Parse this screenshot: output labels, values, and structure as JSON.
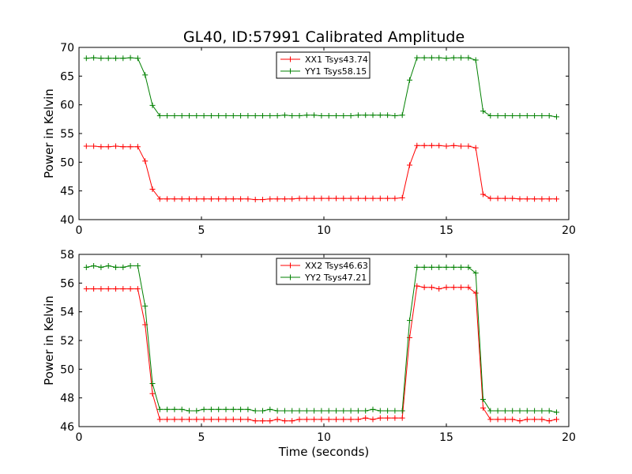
{
  "title": "GL40, ID:57991 Calibrated Amplitude",
  "chart_data": [
    {
      "type": "line",
      "ylabel": "Power in Kelvin",
      "xlabel": "",
      "xlim": [
        0,
        20
      ],
      "ylim": [
        40,
        70
      ],
      "xticks": [
        0,
        5,
        10,
        15,
        20
      ],
      "yticks": [
        40,
        45,
        50,
        55,
        60,
        65,
        70
      ],
      "grid": false,
      "legend_position": "top-center",
      "x": [
        0.3,
        0.6,
        0.9,
        1.2,
        1.5,
        1.8,
        2.1,
        2.4,
        2.7,
        3.0,
        3.3,
        3.6,
        3.9,
        4.2,
        4.5,
        4.8,
        5.1,
        5.4,
        5.7,
        6.0,
        6.3,
        6.6,
        6.9,
        7.2,
        7.5,
        7.8,
        8.1,
        8.4,
        8.7,
        9.0,
        9.3,
        9.6,
        9.9,
        10.2,
        10.5,
        10.8,
        11.1,
        11.4,
        11.7,
        12.0,
        12.3,
        12.6,
        12.9,
        13.2,
        13.5,
        13.8,
        14.1,
        14.4,
        14.7,
        15.0,
        15.3,
        15.6,
        15.9,
        16.2,
        16.5,
        16.8,
        17.1,
        17.4,
        17.7,
        18.0,
        18.3,
        18.6,
        18.9,
        19.2,
        19.5
      ],
      "series": [
        {
          "name": "XX1 Tsys43.74",
          "color": "#ff0000",
          "values": [
            52.8,
            52.8,
            52.7,
            52.7,
            52.8,
            52.7,
            52.7,
            52.7,
            50.2,
            45.3,
            43.6,
            43.6,
            43.6,
            43.6,
            43.6,
            43.6,
            43.6,
            43.6,
            43.6,
            43.6,
            43.6,
            43.6,
            43.6,
            43.5,
            43.5,
            43.6,
            43.6,
            43.6,
            43.6,
            43.7,
            43.7,
            43.7,
            43.7,
            43.7,
            43.7,
            43.7,
            43.7,
            43.7,
            43.7,
            43.7,
            43.7,
            43.7,
            43.7,
            43.8,
            49.5,
            52.9,
            52.9,
            52.9,
            52.9,
            52.8,
            52.9,
            52.8,
            52.8,
            52.5,
            44.4,
            43.7,
            43.7,
            43.7,
            43.7,
            43.6,
            43.6,
            43.6,
            43.6,
            43.6,
            43.6
          ]
        },
        {
          "name": "YY1 Tsys58.15",
          "color": "#008000",
          "values": [
            68.1,
            68.2,
            68.1,
            68.1,
            68.1,
            68.1,
            68.2,
            68.1,
            65.2,
            59.9,
            58.1,
            58.1,
            58.1,
            58.1,
            58.1,
            58.1,
            58.1,
            58.1,
            58.1,
            58.1,
            58.1,
            58.1,
            58.1,
            58.1,
            58.1,
            58.1,
            58.1,
            58.2,
            58.1,
            58.1,
            58.2,
            58.2,
            58.1,
            58.1,
            58.1,
            58.1,
            58.1,
            58.2,
            58.2,
            58.2,
            58.2,
            58.2,
            58.1,
            58.2,
            64.3,
            68.2,
            68.2,
            68.2,
            68.2,
            68.1,
            68.2,
            68.2,
            68.2,
            67.8,
            58.9,
            58.1,
            58.1,
            58.1,
            58.1,
            58.1,
            58.1,
            58.1,
            58.1,
            58.1,
            57.9
          ]
        }
      ]
    },
    {
      "type": "line",
      "ylabel": "Power in Kelvin",
      "xlabel": "Time (seconds)",
      "xlim": [
        0,
        20
      ],
      "ylim": [
        46,
        58
      ],
      "xticks": [
        0,
        5,
        10,
        15,
        20
      ],
      "yticks": [
        46,
        48,
        50,
        52,
        54,
        56,
        58
      ],
      "grid": false,
      "legend_position": "top-center",
      "x": [
        0.3,
        0.6,
        0.9,
        1.2,
        1.5,
        1.8,
        2.1,
        2.4,
        2.7,
        3.0,
        3.3,
        3.6,
        3.9,
        4.2,
        4.5,
        4.8,
        5.1,
        5.4,
        5.7,
        6.0,
        6.3,
        6.6,
        6.9,
        7.2,
        7.5,
        7.8,
        8.1,
        8.4,
        8.7,
        9.0,
        9.3,
        9.6,
        9.9,
        10.2,
        10.5,
        10.8,
        11.1,
        11.4,
        11.7,
        12.0,
        12.3,
        12.6,
        12.9,
        13.2,
        13.5,
        13.8,
        14.1,
        14.4,
        14.7,
        15.0,
        15.3,
        15.6,
        15.9,
        16.2,
        16.5,
        16.8,
        17.1,
        17.4,
        17.7,
        18.0,
        18.3,
        18.6,
        18.9,
        19.2,
        19.5
      ],
      "series": [
        {
          "name": "XX2 Tsys46.63",
          "color": "#ff0000",
          "values": [
            55.6,
            55.6,
            55.6,
            55.6,
            55.6,
            55.6,
            55.6,
            55.6,
            53.1,
            48.3,
            46.5,
            46.5,
            46.5,
            46.5,
            46.5,
            46.5,
            46.5,
            46.5,
            46.5,
            46.5,
            46.5,
            46.5,
            46.5,
            46.4,
            46.4,
            46.4,
            46.5,
            46.4,
            46.4,
            46.5,
            46.5,
            46.5,
            46.5,
            46.5,
            46.5,
            46.5,
            46.5,
            46.5,
            46.6,
            46.5,
            46.6,
            46.6,
            46.6,
            46.6,
            52.2,
            55.8,
            55.7,
            55.7,
            55.6,
            55.7,
            55.7,
            55.7,
            55.7,
            55.3,
            47.3,
            46.5,
            46.5,
            46.5,
            46.5,
            46.4,
            46.5,
            46.5,
            46.5,
            46.4,
            46.5
          ]
        },
        {
          "name": "YY2 Tsys47.21",
          "color": "#008000",
          "values": [
            57.1,
            57.2,
            57.1,
            57.2,
            57.1,
            57.1,
            57.2,
            57.2,
            54.4,
            49.0,
            47.2,
            47.2,
            47.2,
            47.2,
            47.1,
            47.1,
            47.2,
            47.2,
            47.2,
            47.2,
            47.2,
            47.2,
            47.2,
            47.1,
            47.1,
            47.2,
            47.1,
            47.1,
            47.1,
            47.1,
            47.1,
            47.1,
            47.1,
            47.1,
            47.1,
            47.1,
            47.1,
            47.1,
            47.1,
            47.2,
            47.1,
            47.1,
            47.1,
            47.1,
            53.4,
            57.1,
            57.1,
            57.1,
            57.1,
            57.1,
            57.1,
            57.1,
            57.1,
            56.7,
            47.9,
            47.1,
            47.1,
            47.1,
            47.1,
            47.1,
            47.1,
            47.1,
            47.1,
            47.1,
            47.0
          ]
        }
      ]
    }
  ]
}
